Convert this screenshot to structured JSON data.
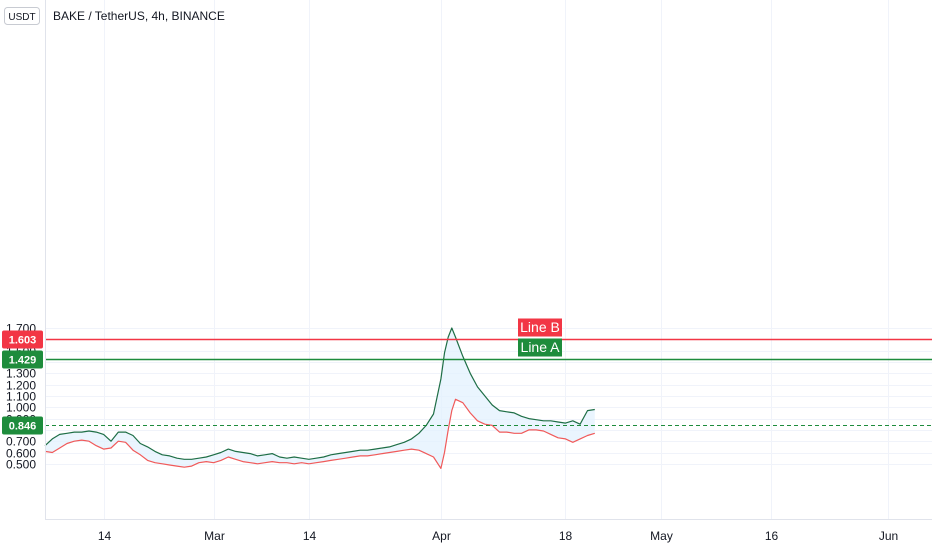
{
  "header": {
    "unit_badge": "USDT",
    "title": "BAKE / TetherUS, 4h, BINANCE"
  },
  "chart_data": {
    "type": "line",
    "title": "BAKE / TetherUS, 4h, BINANCE",
    "xlabel": "",
    "ylabel": "",
    "ylim": [
      0.46,
      1.75
    ],
    "xlim": [
      "2021-02-06",
      "2021-06-07"
    ],
    "grid": true,
    "y_ticks": [
      "0.500",
      "0.600",
      "0.700",
      "0.800",
      "0.900",
      "1.000",
      "1.100",
      "1.200",
      "1.300",
      "1.400",
      "1.500",
      "1.700"
    ],
    "x_ticks": [
      {
        "date": "2021-02-14",
        "label": "14"
      },
      {
        "date": "2021-03-01",
        "label": "Mar"
      },
      {
        "date": "2021-03-14",
        "label": "14"
      },
      {
        "date": "2021-04-01",
        "label": "Apr"
      },
      {
        "date": "2021-04-18",
        "label": "18"
      },
      {
        "date": "2021-05-01",
        "label": "May"
      },
      {
        "date": "2021-05-16",
        "label": "16"
      },
      {
        "date": "2021-06-01",
        "label": "Jun"
      }
    ],
    "series": [
      {
        "color": "#1e6e46",
        "x": [
          "2021-02-06T00:00",
          "2021-02-07T00:00",
          "2021-02-08T00:00",
          "2021-02-09T00:00",
          "2021-02-10T00:00",
          "2021-02-11T00:00",
          "2021-02-12T00:00",
          "2021-02-13T00:00",
          "2021-02-14T00:00",
          "2021-02-15T00:00",
          "2021-02-16T00:00",
          "2021-02-17T00:00",
          "2021-02-18T00:00",
          "2021-02-19T00:00",
          "2021-02-20T00:00",
          "2021-02-21T00:00",
          "2021-02-22T00:00",
          "2021-02-23T00:00",
          "2021-02-24T00:00",
          "2021-02-25T00:00",
          "2021-02-26T00:00",
          "2021-02-27T00:00",
          "2021-02-28T00:00",
          "2021-03-01T00:00",
          "2021-03-02T00:00",
          "2021-03-03T00:00",
          "2021-03-04T00:00",
          "2021-03-05T00:00",
          "2021-03-06T00:00",
          "2021-03-07T00:00",
          "2021-03-08T00:00",
          "2021-03-09T00:00",
          "2021-03-10T00:00",
          "2021-03-11T00:00",
          "2021-03-12T00:00",
          "2021-03-13T00:00",
          "2021-03-14T00:00",
          "2021-03-15T00:00",
          "2021-03-16T00:00",
          "2021-03-17T00:00",
          "2021-03-18T00:00",
          "2021-03-19T00:00",
          "2021-03-20T00:00",
          "2021-03-21T00:00",
          "2021-03-22T00:00",
          "2021-03-23T00:00",
          "2021-03-24T00:00",
          "2021-03-25T00:00",
          "2021-03-26T00:00",
          "2021-03-27T00:00",
          "2021-03-28T00:00",
          "2021-03-29T00:00",
          "2021-03-30T00:00",
          "2021-03-31T00:00",
          "2021-04-01T00:00",
          "2021-04-01T12:00",
          "2021-04-02T00:00",
          "2021-04-02T12:00",
          "2021-04-03T00:00",
          "2021-04-04T00:00",
          "2021-04-05T00:00",
          "2021-04-06T00:00",
          "2021-04-07T00:00",
          "2021-04-08T00:00",
          "2021-04-09T00:00",
          "2021-04-10T00:00",
          "2021-04-11T00:00",
          "2021-04-12T00:00",
          "2021-04-13T00:00",
          "2021-04-14T00:00",
          "2021-04-15T00:00",
          "2021-04-16T00:00",
          "2021-04-17T00:00",
          "2021-04-18T00:00",
          "2021-04-19T00:00",
          "2021-04-20T00:00",
          "2021-04-21T00:00",
          "2021-04-22T00:00"
        ],
        "values": [
          0.66,
          0.72,
          0.76,
          0.77,
          0.78,
          0.78,
          0.79,
          0.78,
          0.76,
          0.7,
          0.78,
          0.78,
          0.75,
          0.68,
          0.65,
          0.61,
          0.58,
          0.57,
          0.55,
          0.54,
          0.54,
          0.55,
          0.56,
          0.58,
          0.6,
          0.63,
          0.61,
          0.6,
          0.59,
          0.57,
          0.58,
          0.59,
          0.56,
          0.55,
          0.56,
          0.55,
          0.54,
          0.55,
          0.56,
          0.58,
          0.59,
          0.6,
          0.61,
          0.62,
          0.62,
          0.63,
          0.64,
          0.65,
          0.67,
          0.69,
          0.72,
          0.77,
          0.84,
          0.94,
          1.25,
          1.48,
          1.62,
          1.7,
          1.62,
          1.45,
          1.3,
          1.18,
          1.1,
          1.02,
          0.97,
          0.96,
          0.95,
          0.92,
          0.9,
          0.89,
          0.88,
          0.88,
          0.87,
          0.86,
          0.88,
          0.85,
          0.97,
          0.98
        ]
      },
      {
        "color": "#f05a5a",
        "x": [
          "2021-02-06T00:00",
          "2021-02-07T00:00",
          "2021-02-08T00:00",
          "2021-02-09T00:00",
          "2021-02-10T00:00",
          "2021-02-11T00:00",
          "2021-02-12T00:00",
          "2021-02-13T00:00",
          "2021-02-14T00:00",
          "2021-02-15T00:00",
          "2021-02-16T00:00",
          "2021-02-17T00:00",
          "2021-02-18T00:00",
          "2021-02-19T00:00",
          "2021-02-20T00:00",
          "2021-02-21T00:00",
          "2021-02-22T00:00",
          "2021-02-23T00:00",
          "2021-02-24T00:00",
          "2021-02-25T00:00",
          "2021-02-26T00:00",
          "2021-02-27T00:00",
          "2021-02-28T00:00",
          "2021-03-01T00:00",
          "2021-03-02T00:00",
          "2021-03-03T00:00",
          "2021-03-04T00:00",
          "2021-03-05T00:00",
          "2021-03-06T00:00",
          "2021-03-07T00:00",
          "2021-03-08T00:00",
          "2021-03-09T00:00",
          "2021-03-10T00:00",
          "2021-03-11T00:00",
          "2021-03-12T00:00",
          "2021-03-13T00:00",
          "2021-03-14T00:00",
          "2021-03-15T00:00",
          "2021-03-16T00:00",
          "2021-03-17T00:00",
          "2021-03-18T00:00",
          "2021-03-19T00:00",
          "2021-03-20T00:00",
          "2021-03-21T00:00",
          "2021-03-22T00:00",
          "2021-03-23T00:00",
          "2021-03-24T00:00",
          "2021-03-25T00:00",
          "2021-03-26T00:00",
          "2021-03-27T00:00",
          "2021-03-28T00:00",
          "2021-03-29T00:00",
          "2021-03-30T00:00",
          "2021-03-31T00:00",
          "2021-04-01T00:00",
          "2021-04-01T12:00",
          "2021-04-02T00:00",
          "2021-04-02T12:00",
          "2021-04-03T00:00",
          "2021-04-04T00:00",
          "2021-04-05T00:00",
          "2021-04-06T00:00",
          "2021-04-07T00:00",
          "2021-04-08T00:00",
          "2021-04-09T00:00",
          "2021-04-10T00:00",
          "2021-04-11T00:00",
          "2021-04-12T00:00",
          "2021-04-13T00:00",
          "2021-04-14T00:00",
          "2021-04-15T00:00",
          "2021-04-16T00:00",
          "2021-04-17T00:00",
          "2021-04-18T00:00",
          "2021-04-19T00:00",
          "2021-04-20T00:00",
          "2021-04-21T00:00",
          "2021-04-22T00:00"
        ],
        "values": [
          0.61,
          0.6,
          0.64,
          0.68,
          0.7,
          0.71,
          0.7,
          0.66,
          0.63,
          0.64,
          0.7,
          0.69,
          0.62,
          0.58,
          0.53,
          0.51,
          0.5,
          0.49,
          0.48,
          0.47,
          0.48,
          0.51,
          0.52,
          0.51,
          0.53,
          0.56,
          0.54,
          0.52,
          0.51,
          0.5,
          0.51,
          0.52,
          0.51,
          0.51,
          0.5,
          0.51,
          0.5,
          0.51,
          0.52,
          0.53,
          0.54,
          0.55,
          0.56,
          0.57,
          0.57,
          0.58,
          0.59,
          0.6,
          0.61,
          0.62,
          0.63,
          0.62,
          0.59,
          0.56,
          0.46,
          0.6,
          0.8,
          0.97,
          1.07,
          1.04,
          0.95,
          0.88,
          0.85,
          0.84,
          0.78,
          0.78,
          0.77,
          0.77,
          0.8,
          0.8,
          0.79,
          0.76,
          0.73,
          0.72,
          0.69,
          0.72,
          0.75,
          0.77
        ]
      }
    ],
    "horizontal_lines": [
      {
        "value": 1.603,
        "price_label": "1.603",
        "text": "Line B",
        "color": "#f23645",
        "style": "solid"
      },
      {
        "value": 1.429,
        "price_label": "1.429",
        "text": "Line A",
        "color": "#1e8c3c",
        "style": "solid"
      },
      {
        "value": 0.846,
        "price_label": "0.846",
        "text": "",
        "color": "#1e8c3c",
        "style": "dashed"
      }
    ],
    "fill_color": "#e3f2fd"
  }
}
